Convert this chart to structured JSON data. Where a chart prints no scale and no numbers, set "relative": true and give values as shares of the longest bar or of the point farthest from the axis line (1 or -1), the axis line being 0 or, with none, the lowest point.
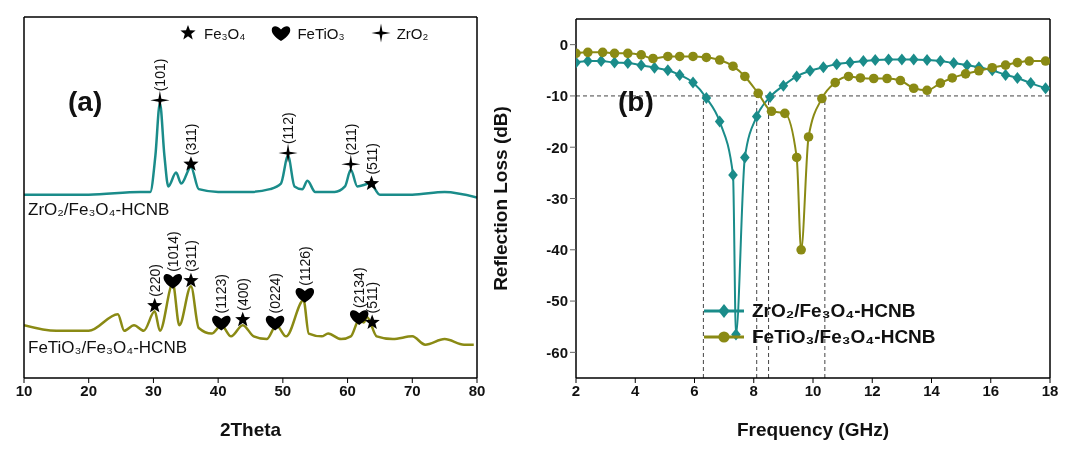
{
  "chart_data": [
    {
      "type": "line",
      "relative": true,
      "xlabel": "2Theta",
      "xlim": [
        10,
        80
      ],
      "xticks": [
        10,
        20,
        30,
        40,
        50,
        60,
        70,
        80
      ],
      "tick_labels": "x",
      "legend": "top",
      "series": [
        {
          "name": "ZrO₂/Fe₃O₄-HCNB",
          "color": "#1a8c8a",
          "marker": "none",
          "x": [
            10,
            20,
            28,
            29.5,
            30.3,
            31,
            31.7,
            32.3,
            33.5,
            34.3,
            35.8,
            37,
            40,
            45,
            48,
            49.7,
            50.8,
            51.8,
            53,
            53.8,
            55,
            58,
            59.6,
            60.5,
            61.5,
            63.5,
            65,
            70,
            75,
            80
          ],
          "values": [
            0.66,
            0.66,
            0.67,
            0.67,
            0.8,
            0.99,
            0.8,
            0.69,
            0.74,
            0.7,
            0.76,
            0.68,
            0.67,
            0.67,
            0.68,
            0.7,
            0.8,
            0.69,
            0.68,
            0.71,
            0.67,
            0.67,
            0.69,
            0.75,
            0.69,
            0.7,
            0.66,
            0.66,
            0.67,
            0.65
          ]
        },
        {
          "name": "FeTiO₃/Fe₃O₄-HCNB",
          "color": "#8a8a14",
          "marker": "none",
          "x": [
            10,
            15,
            20,
            24.5,
            25.5,
            27,
            28.5,
            30.2,
            31,
            33,
            34,
            35.8,
            37,
            39,
            40.5,
            42,
            43.8,
            45.5,
            47.5,
            49,
            50.5,
            53.2,
            54,
            56,
            57,
            59,
            60.5,
            61.8,
            62.5,
            63,
            64.5,
            67,
            70,
            72,
            75,
            78,
            79.5
          ],
          "values": [
            0.19,
            0.17,
            0.17,
            0.23,
            0.17,
            0.19,
            0.17,
            0.24,
            0.17,
            0.34,
            0.19,
            0.33,
            0.18,
            0.16,
            0.19,
            0.15,
            0.19,
            0.15,
            0.14,
            0.19,
            0.15,
            0.28,
            0.16,
            0.15,
            0.16,
            0.14,
            0.15,
            0.21,
            0.2,
            0.22,
            0.15,
            0.14,
            0.15,
            0.12,
            0.14,
            0.12,
            0.12
          ]
        },
        {
          "name": "Fe₃O₄",
          "type": "scatter",
          "color": "#000000",
          "marker": "star",
          "x": [
            35.8,
            63.7,
            30.2,
            35.8,
            43.8,
            63.8
          ],
          "values": [
            0.77,
            0.7,
            0.26,
            0.35,
            0.21,
            0.2
          ]
        },
        {
          "name": "FeTiO₃",
          "type": "scatter",
          "color": "#000000",
          "x": [
            33,
            40.5,
            48.8,
            53.4,
            61.8
          ],
          "values": [
            0.35,
            0.2,
            0.2,
            0.3,
            0.22
          ]
        },
        {
          "name": "ZrO₂",
          "type": "scatter",
          "color": "#000000",
          "marker": "cross",
          "x": [
            31,
            50.8,
            60.5
          ],
          "values": [
            1.0,
            0.81,
            0.77
          ]
        }
      ],
      "annotations": [
        "(a)",
        {
          "text": "(101)",
          "x": 31,
          "y": 1.0
        },
        {
          "text": "(311)",
          "x": 35.8,
          "y": 0.77
        },
        {
          "text": "(112)",
          "x": 50.8,
          "y": 0.81
        },
        {
          "text": "(211)",
          "x": 60.5,
          "y": 0.77
        },
        {
          "text": "(511)",
          "x": 63.7,
          "y": 0.7
        },
        {
          "text": "(220)",
          "x": 30.2,
          "y": 0.26
        },
        {
          "text": "(1014)",
          "x": 33,
          "y": 0.35
        },
        {
          "text": "(311)",
          "x": 35.8,
          "y": 0.35
        },
        {
          "text": "(1123)",
          "x": 40.5,
          "y": 0.2
        },
        {
          "text": "(400)",
          "x": 43.8,
          "y": 0.21
        },
        {
          "text": "(0224)",
          "x": 48.8,
          "y": 0.2
        },
        {
          "text": "(1126)",
          "x": 53.4,
          "y": 0.3
        },
        {
          "text": "(2134)",
          "x": 61.8,
          "y": 0.22
        },
        {
          "text": "(511)",
          "x": 63.8,
          "y": 0.2
        }
      ]
    },
    {
      "type": "line",
      "xlabel": "Frequency (GHz)",
      "ylabel": "Reflection Loss (dB)",
      "xlim": [
        2,
        18
      ],
      "xticks": [
        2,
        4,
        6,
        8,
        10,
        12,
        14,
        16,
        18
      ],
      "ylim": [
        -65,
        5
      ],
      "yticks": [
        -60,
        -50,
        -40,
        -30,
        -20,
        -10,
        0
      ],
      "legend": "bottom",
      "line_style": "solid",
      "series": [
        {
          "name": "ZrO₂/Fe₃O₄-HCNB",
          "color": "#1a8c8a",
          "marker": "diamond",
          "x": [
            2,
            2.4,
            2.85,
            3.3,
            3.75,
            4.2,
            4.65,
            5.1,
            5.5,
            5.95,
            6.4,
            6.85,
            7.3,
            7.4,
            7.7,
            8.1,
            8.55,
            9.0,
            9.45,
            9.9,
            10.35,
            10.8,
            11.25,
            11.7,
            12.1,
            12.55,
            13.0,
            13.4,
            13.85,
            14.3,
            14.75,
            15.2,
            15.6,
            16.05,
            16.5,
            16.9,
            17.35,
            17.85
          ],
          "values": [
            -3.5,
            -3.2,
            -3.2,
            -3.5,
            -3.6,
            -4,
            -4.5,
            -5,
            -5.9,
            -7.4,
            -10.4,
            -15,
            -25.4,
            -56.5,
            -22,
            -14,
            -10.2,
            -8,
            -6.2,
            -5.1,
            -4.4,
            -3.8,
            -3.5,
            -3.2,
            -3,
            -2.9,
            -2.9,
            -2.9,
            -3,
            -3.2,
            -3.6,
            -4,
            -4.4,
            -5,
            -5.9,
            -6.5,
            -7.5,
            -8.5
          ]
        },
        {
          "name": "FeTiO₃/Fe₃O₄-HCNB",
          "color": "#8a8a14",
          "marker": "circle",
          "x": [
            2,
            2.4,
            2.9,
            3.3,
            3.75,
            4.2,
            4.6,
            5.1,
            5.5,
            5.95,
            6.4,
            6.85,
            7.3,
            7.7,
            8.15,
            8.6,
            9.05,
            9.45,
            9.6,
            9.85,
            10.3,
            10.75,
            11.2,
            11.6,
            12.05,
            12.5,
            12.95,
            13.4,
            13.85,
            14.3,
            14.7,
            15.15,
            15.6,
            16.05,
            16.5,
            16.9,
            17.3,
            17.85
          ],
          "values": [
            -1.7,
            -1.5,
            -1.5,
            -1.7,
            -1.7,
            -2,
            -2.7,
            -2.3,
            -2.3,
            -2.3,
            -2.5,
            -3,
            -4.2,
            -6.2,
            -9.5,
            -13,
            -13.4,
            -22,
            -40,
            -18,
            -10.5,
            -7.4,
            -6.2,
            -6.5,
            -6.6,
            -6.6,
            -7,
            -8.5,
            -8.9,
            -7.5,
            -6.5,
            -5.7,
            -5.1,
            -4.5,
            -4,
            -3.5,
            -3.2,
            -3.2
          ]
        }
      ],
      "ref_lines": [
        {
          "axis": "y",
          "value": -10,
          "line_style": "dashed",
          "color": "#444444"
        },
        {
          "axis": "x",
          "value": 6.3,
          "line_style": "dashed",
          "color": "#444444"
        },
        {
          "axis": "x",
          "value": 8.1,
          "line_style": "dashed",
          "color": "#444444"
        },
        {
          "axis": "x",
          "value": 8.5,
          "line_style": "dashed",
          "color": "#444444"
        },
        {
          "axis": "x",
          "value": 10.4,
          "line_style": "dashed",
          "color": "#444444"
        }
      ],
      "annotations": [
        "(b)"
      ]
    }
  ]
}
